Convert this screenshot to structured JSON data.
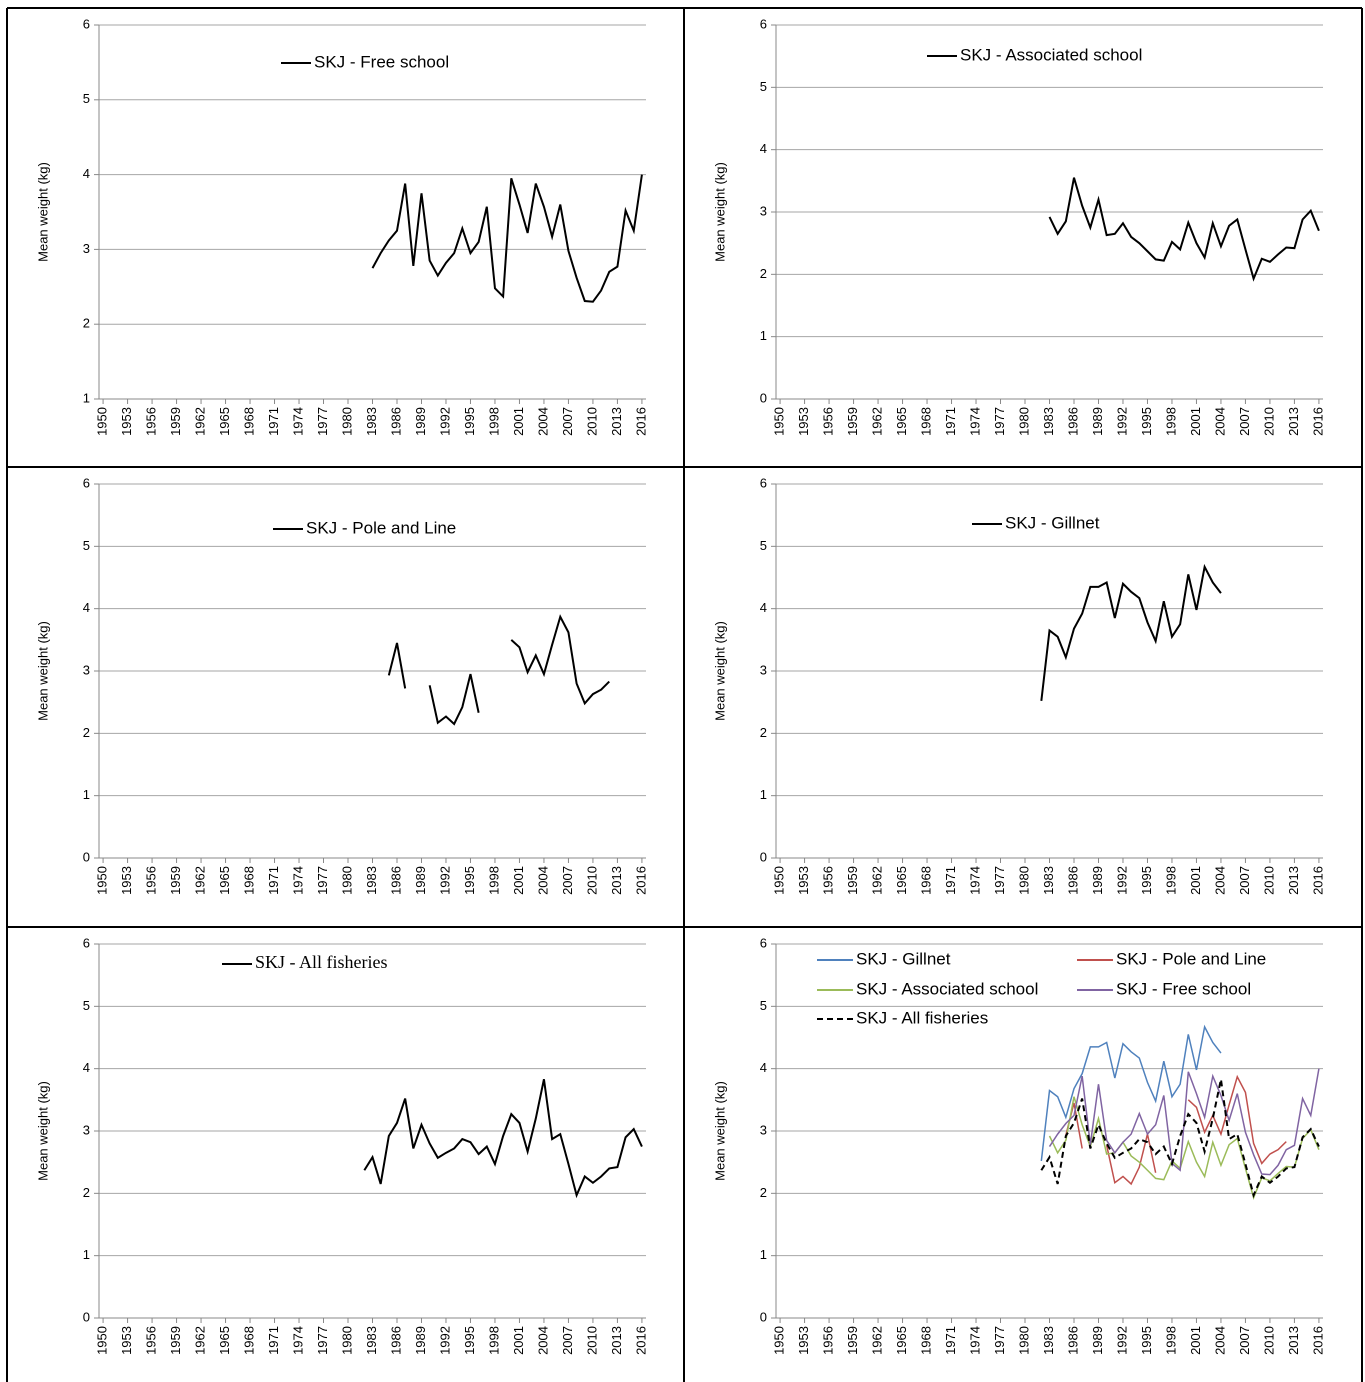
{
  "chart_data": [
    {
      "type": "line",
      "legend": "top",
      "ylabel": "Mean weight (kg)",
      "grid": true,
      "xlim": [
        1949.5,
        2016.5
      ],
      "xticks": [
        1950,
        1953,
        1956,
        1959,
        1962,
        1965,
        1968,
        1971,
        1974,
        1977,
        1980,
        1983,
        1986,
        1989,
        1992,
        1995,
        1998,
        2001,
        2004,
        2007,
        2010,
        2013,
        2016
      ],
      "ylim": [
        1,
        6
      ],
      "yticks": [
        1,
        2,
        3,
        4,
        5,
        6
      ],
      "x": [
        1983,
        1984,
        1985,
        1986,
        1987,
        1988,
        1989,
        1990,
        1991,
        1992,
        1993,
        1994,
        1995,
        1996,
        1997,
        1998,
        1999,
        2000,
        2001,
        2002,
        2003,
        2004,
        2005,
        2006,
        2007,
        2008,
        2009,
        2010,
        2011,
        2012,
        2013,
        2014,
        2015,
        2016
      ],
      "series": [
        {
          "name": "SKJ - Free school",
          "color": "#000000",
          "values": [
            2.75,
            2.95,
            3.12,
            3.25,
            3.88,
            2.78,
            3.75,
            2.85,
            2.65,
            2.82,
            2.95,
            3.28,
            2.95,
            3.1,
            3.57,
            2.48,
            2.37,
            3.95,
            3.6,
            3.22,
            3.88,
            3.57,
            3.17,
            3.6,
            2.98,
            2.62,
            2.31,
            2.3,
            2.45,
            2.7,
            2.77,
            3.52,
            3.25,
            4.0
          ]
        }
      ]
    },
    {
      "type": "line",
      "legend": "top",
      "ylabel": "Mean weight (kg)",
      "grid": true,
      "xlim": [
        1949.5,
        2016.5
      ],
      "xticks": [
        1950,
        1953,
        1956,
        1959,
        1962,
        1965,
        1968,
        1971,
        1974,
        1977,
        1980,
        1983,
        1986,
        1989,
        1992,
        1995,
        1998,
        2001,
        2004,
        2007,
        2010,
        2013,
        2016
      ],
      "ylim": [
        0,
        6
      ],
      "yticks": [
        0,
        1,
        2,
        3,
        4,
        5,
        6
      ],
      "x": [
        1983,
        1984,
        1985,
        1986,
        1987,
        1988,
        1989,
        1990,
        1991,
        1992,
        1993,
        1994,
        1995,
        1996,
        1997,
        1998,
        1999,
        2000,
        2001,
        2002,
        2003,
        2004,
        2005,
        2006,
        2007,
        2008,
        2009,
        2010,
        2011,
        2012,
        2013,
        2014,
        2015,
        2016
      ],
      "series": [
        {
          "name": "SKJ - Associated school",
          "color": "#000000",
          "values": [
            2.92,
            2.65,
            2.85,
            3.55,
            3.1,
            2.75,
            3.2,
            2.63,
            2.65,
            2.82,
            2.6,
            2.5,
            2.37,
            2.24,
            2.22,
            2.52,
            2.4,
            2.83,
            2.5,
            2.27,
            2.82,
            2.45,
            2.78,
            2.88,
            2.4,
            1.93,
            2.25,
            2.2,
            2.32,
            2.43,
            2.42,
            2.88,
            3.02,
            2.7
          ]
        }
      ]
    },
    {
      "type": "line",
      "legend": "top",
      "ylabel": "Mean weight (kg)",
      "grid": true,
      "xlim": [
        1949.5,
        2016.5
      ],
      "xticks": [
        1950,
        1953,
        1956,
        1959,
        1962,
        1965,
        1968,
        1971,
        1974,
        1977,
        1980,
        1983,
        1986,
        1989,
        1992,
        1995,
        1998,
        2001,
        2004,
        2007,
        2010,
        2013,
        2016
      ],
      "ylim": [
        0,
        6
      ],
      "yticks": [
        0,
        1,
        2,
        3,
        4,
        5,
        6
      ],
      "x": [
        1985,
        1986,
        1987,
        1988,
        1989,
        1990,
        1991,
        1992,
        1993,
        1994,
        1995,
        1996,
        1997,
        1998,
        1999,
        2000,
        2001,
        2002,
        2003,
        2004,
        2005,
        2006,
        2007,
        2008,
        2009,
        2010,
        2011,
        2012
      ],
      "series": [
        {
          "name": "SKJ - Pole and Line",
          "color": "#000000",
          "values": [
            2.93,
            3.45,
            2.72,
            null,
            null,
            2.77,
            2.17,
            2.27,
            2.15,
            2.42,
            2.95,
            2.33,
            null,
            null,
            null,
            3.5,
            3.38,
            2.98,
            3.25,
            2.95,
            3.42,
            3.87,
            3.62,
            2.8,
            2.48,
            2.63,
            2.7,
            2.83
          ]
        }
      ]
    },
    {
      "type": "line",
      "legend": "top",
      "ylabel": "Mean weight (kg)",
      "grid": true,
      "xlim": [
        1949.5,
        2016.5
      ],
      "xticks": [
        1950,
        1953,
        1956,
        1959,
        1962,
        1965,
        1968,
        1971,
        1974,
        1977,
        1980,
        1983,
        1986,
        1989,
        1992,
        1995,
        1998,
        2001,
        2004,
        2007,
        2010,
        2013,
        2016
      ],
      "ylim": [
        0,
        6
      ],
      "yticks": [
        0,
        1,
        2,
        3,
        4,
        5,
        6
      ],
      "x": [
        1982,
        1983,
        1984,
        1985,
        1986,
        1987,
        1988,
        1989,
        1990,
        1991,
        1992,
        1993,
        1994,
        1995,
        1996,
        1997,
        1998,
        1999,
        2000,
        2001,
        2002,
        2003,
        2004
      ],
      "series": [
        {
          "name": "SKJ - Gillnet",
          "color": "#000000",
          "values": [
            2.52,
            3.65,
            3.55,
            3.22,
            3.68,
            3.92,
            4.35,
            4.35,
            4.42,
            3.85,
            4.4,
            4.27,
            4.17,
            3.78,
            3.48,
            4.12,
            3.55,
            3.75,
            4.55,
            3.98,
            4.67,
            4.42,
            4.25
          ]
        }
      ]
    },
    {
      "type": "line",
      "legend": "top",
      "ylabel": "Mean weight (kg)",
      "grid": true,
      "xlim": [
        1949.5,
        2016.5
      ],
      "xticks": [
        1950,
        1953,
        1956,
        1959,
        1962,
        1965,
        1968,
        1971,
        1974,
        1977,
        1980,
        1983,
        1986,
        1989,
        1992,
        1995,
        1998,
        2001,
        2004,
        2007,
        2010,
        2013,
        2016
      ],
      "ylim": [
        0,
        6
      ],
      "yticks": [
        0,
        1,
        2,
        3,
        4,
        5,
        6
      ],
      "x": [
        1982,
        1983,
        1984,
        1985,
        1986,
        1987,
        1988,
        1989,
        1990,
        1991,
        1992,
        1993,
        1994,
        1995,
        1996,
        1997,
        1998,
        1999,
        2000,
        2001,
        2002,
        2003,
        2004,
        2005,
        2006,
        2007,
        2008,
        2009,
        2010,
        2011,
        2012,
        2013,
        2014,
        2015,
        2016
      ],
      "series": [
        {
          "name": "SKJ - All fisheries",
          "color": "#000000",
          "values": [
            2.37,
            2.58,
            2.15,
            2.92,
            3.13,
            3.52,
            2.72,
            3.1,
            2.8,
            2.57,
            2.65,
            2.72,
            2.87,
            2.82,
            2.63,
            2.75,
            2.47,
            2.92,
            3.27,
            3.13,
            2.67,
            3.2,
            3.83,
            2.87,
            2.95,
            2.47,
            1.97,
            2.27,
            2.17,
            2.27,
            2.4,
            2.42,
            2.9,
            3.03,
            2.75
          ]
        }
      ]
    },
    {
      "type": "line",
      "legend": "top-left",
      "ylabel": "Mean weight (kg)",
      "grid": true,
      "xlim": [
        1949.5,
        2016.5
      ],
      "xticks": [
        1950,
        1953,
        1956,
        1959,
        1962,
        1965,
        1968,
        1971,
        1974,
        1977,
        1980,
        1983,
        1986,
        1989,
        1992,
        1995,
        1998,
        2001,
        2004,
        2007,
        2010,
        2013,
        2016
      ],
      "ylim": [
        0,
        6
      ],
      "yticks": [
        0,
        1,
        2,
        3,
        4,
        5,
        6
      ],
      "x": [
        1982,
        1983,
        1984,
        1985,
        1986,
        1987,
        1988,
        1989,
        1990,
        1991,
        1992,
        1993,
        1994,
        1995,
        1996,
        1997,
        1998,
        1999,
        2000,
        2001,
        2002,
        2003,
        2004,
        2005,
        2006,
        2007,
        2008,
        2009,
        2010,
        2011,
        2012,
        2013,
        2014,
        2015,
        2016
      ],
      "series": [
        {
          "name": "SKJ - Gillnet",
          "color": "#4f81bd",
          "values": [
            2.52,
            3.65,
            3.55,
            3.22,
            3.68,
            3.92,
            4.35,
            4.35,
            4.42,
            3.85,
            4.4,
            4.27,
            4.17,
            3.78,
            3.48,
            4.12,
            3.55,
            3.75,
            4.55,
            3.98,
            4.67,
            4.42,
            4.25,
            null,
            null,
            null,
            null,
            null,
            null,
            null,
            null,
            null,
            null,
            null,
            null
          ]
        },
        {
          "name": "SKJ - Pole and Line",
          "color": "#c0504d",
          "values": [
            null,
            null,
            null,
            2.93,
            3.45,
            2.72,
            null,
            null,
            2.77,
            2.17,
            2.27,
            2.15,
            2.42,
            2.95,
            2.33,
            null,
            null,
            null,
            3.5,
            3.38,
            2.98,
            3.25,
            2.95,
            3.42,
            3.87,
            3.62,
            2.8,
            2.48,
            2.63,
            2.7,
            2.83,
            null,
            null,
            null,
            null
          ]
        },
        {
          "name": "SKJ - Associated school",
          "color": "#9bbb59",
          "values": [
            null,
            2.92,
            2.65,
            2.85,
            3.55,
            3.1,
            2.75,
            3.2,
            2.63,
            2.65,
            2.82,
            2.6,
            2.5,
            2.37,
            2.24,
            2.22,
            2.52,
            2.4,
            2.83,
            2.5,
            2.27,
            2.82,
            2.45,
            2.78,
            2.88,
            2.4,
            1.93,
            2.25,
            2.2,
            2.32,
            2.43,
            2.42,
            2.88,
            3.02,
            2.7
          ]
        },
        {
          "name": "SKJ - Free school",
          "color": "#8064a2",
          "values": [
            null,
            2.75,
            2.95,
            3.12,
            3.25,
            3.88,
            2.78,
            3.75,
            2.85,
            2.65,
            2.82,
            2.95,
            3.28,
            2.95,
            3.1,
            3.57,
            2.48,
            2.37,
            3.95,
            3.6,
            3.22,
            3.88,
            3.57,
            3.17,
            3.6,
            2.98,
            2.62,
            2.31,
            2.3,
            2.45,
            2.7,
            2.77,
            3.52,
            3.25,
            4.0
          ]
        },
        {
          "name": "SKJ - All fisheries",
          "color": "#000000",
          "line_style": "dashed",
          "values": [
            2.37,
            2.58,
            2.15,
            2.92,
            3.13,
            3.52,
            2.72,
            3.1,
            2.8,
            2.57,
            2.65,
            2.72,
            2.87,
            2.82,
            2.63,
            2.75,
            2.47,
            2.92,
            3.27,
            3.13,
            2.67,
            3.2,
            3.83,
            2.87,
            2.95,
            2.47,
            1.97,
            2.27,
            2.17,
            2.27,
            2.4,
            2.42,
            2.9,
            3.03,
            2.75
          ]
        }
      ]
    }
  ]
}
